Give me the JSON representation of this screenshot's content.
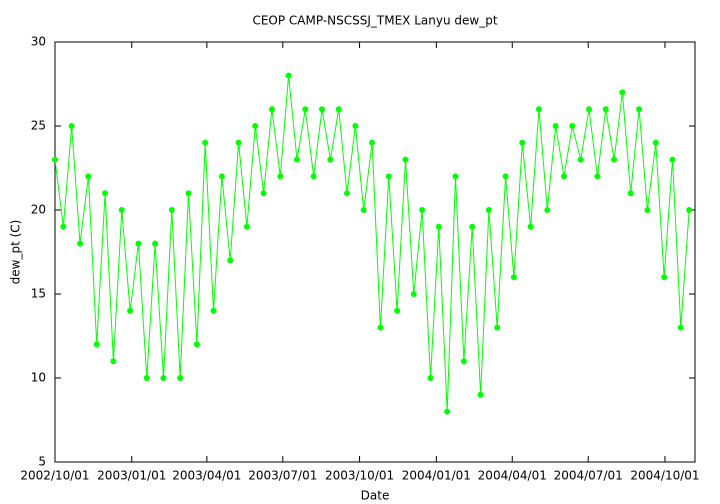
{
  "chart_data": {
    "type": "line",
    "title": "CEOP CAMP-NSCSSJ_TMEX Lanyu  dew_pt",
    "x_label": "Date",
    "y_label": "dew_pt (C)",
    "x": [
      "2002/10/01",
      "2002/10/11",
      "2002/10/21",
      "2002/10/31",
      "2002/11/10",
      "2002/11/20",
      "2002/11/30",
      "2002/12/10",
      "2002/12/20",
      "2002/12/30",
      "2003/01/09",
      "2003/01/19",
      "2003/01/29",
      "2003/02/08",
      "2003/02/18",
      "2003/02/28",
      "2003/03/10",
      "2003/03/20",
      "2003/03/30",
      "2003/04/09",
      "2003/04/19",
      "2003/04/29",
      "2003/05/09",
      "2003/05/19",
      "2003/05/29",
      "2003/06/08",
      "2003/06/18",
      "2003/06/28",
      "2003/07/08",
      "2003/07/18",
      "2003/07/28",
      "2003/08/07",
      "2003/08/17",
      "2003/08/27",
      "2003/09/06",
      "2003/09/16",
      "2003/09/26",
      "2003/10/06",
      "2003/10/16",
      "2003/10/26",
      "2003/11/05",
      "2003/11/15",
      "2003/11/25",
      "2003/12/05",
      "2003/12/15",
      "2003/12/25",
      "2004/01/04",
      "2004/01/14",
      "2004/01/24",
      "2004/02/03",
      "2004/02/13",
      "2004/02/23",
      "2004/03/04",
      "2004/03/14",
      "2004/03/24",
      "2004/04/03",
      "2004/04/13",
      "2004/04/23",
      "2004/05/03",
      "2004/05/13",
      "2004/05/23",
      "2004/06/02",
      "2004/06/12",
      "2004/06/22",
      "2004/07/02",
      "2004/07/12",
      "2004/07/22",
      "2004/08/01",
      "2004/08/11",
      "2004/08/21",
      "2004/08/31",
      "2004/09/10",
      "2004/09/20",
      "2004/09/30",
      "2004/10/10",
      "2004/10/20",
      "2004/10/30"
    ],
    "series": [
      {
        "name": "dew_pt",
        "color": "#00ff00",
        "values": [
          23,
          19,
          25,
          18,
          22,
          12,
          21,
          11,
          20,
          14,
          18,
          10,
          18,
          10,
          20,
          10,
          21,
          12,
          24,
          14,
          22,
          17,
          24,
          19,
          25,
          21,
          26,
          22,
          28,
          23,
          26,
          22,
          26,
          23,
          26,
          21,
          25,
          20,
          24,
          13,
          22,
          14,
          23,
          15,
          20,
          10,
          19,
          8,
          22,
          11,
          19,
          9,
          20,
          13,
          22,
          16,
          24,
          19,
          26,
          20,
          25,
          22,
          25,
          23,
          26,
          22,
          26,
          23,
          27,
          21,
          26,
          20,
          24,
          16,
          23,
          13,
          20
        ]
      }
    ],
    "xlim": [
      "2002/10/01",
      "2004/11/06"
    ],
    "xticks": [
      "2002/10/01",
      "2003/01/01",
      "2003/04/01",
      "2003/07/01",
      "2003/10/01",
      "2004/01/01",
      "2004/04/01",
      "2004/07/01",
      "2004/10/01"
    ],
    "ylim": [
      5,
      30
    ],
    "yticks": [
      5,
      10,
      15,
      20,
      25,
      30
    ]
  }
}
